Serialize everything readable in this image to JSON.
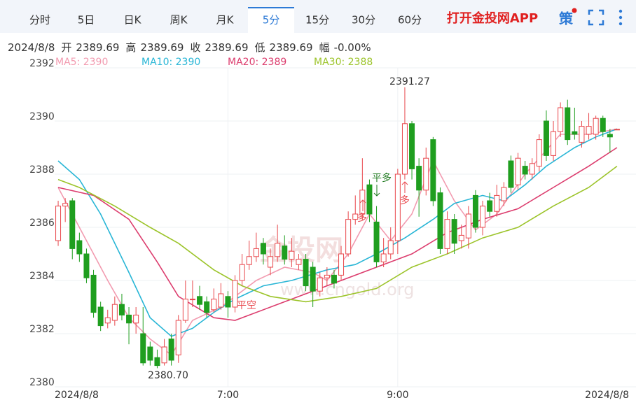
{
  "header": {
    "tabs": [
      "分时",
      "5日",
      "日K",
      "周K",
      "月K",
      "5分",
      "15分",
      "30分",
      "60分"
    ],
    "active_tab": "5分",
    "app_link": "打开金投网APP",
    "strategy_icon": "策",
    "info": {
      "date": "2024/8/8",
      "items": [
        {
          "label": "开",
          "value": "2389.69"
        },
        {
          "label": "高",
          "value": "2389.69"
        },
        {
          "label": "收",
          "value": "2389.69"
        },
        {
          "label": "低",
          "value": "2389.69"
        },
        {
          "label": "幅",
          "value": "-0.00%"
        }
      ]
    }
  },
  "chart_data": {
    "type": "candlestick",
    "categories": [
      "2024/8/8",
      null,
      null,
      null,
      null,
      null,
      null,
      null,
      null,
      null,
      null,
      null,
      null,
      null,
      null,
      null,
      null,
      null,
      null,
      null,
      null,
      null,
      null,
      null,
      "7:00",
      null,
      null,
      null,
      null,
      null,
      null,
      null,
      null,
      null,
      null,
      null,
      null,
      null,
      null,
      null,
      null,
      null,
      null,
      null,
      null,
      null,
      null,
      null,
      "9:00",
      null,
      null,
      null,
      null,
      null,
      null,
      null,
      null,
      null,
      null,
      null,
      null,
      null,
      null,
      null,
      null,
      null,
      null,
      null,
      null,
      null,
      null,
      null,
      null,
      null,
      null,
      null,
      null,
      null,
      null,
      "2024/8/8"
    ],
    "open": [
      2385.5,
      2386.8,
      2387.0,
      2385.5,
      2385.0,
      2384.2,
      2383.0,
      2382.4,
      2382.5,
      2383.1,
      2382.7,
      2382.4,
      2382.0,
      2381.5,
      2381.1,
      2380.9,
      2381.8,
      2381.2,
      2382.5,
      2383.3,
      2383.4,
      2383.2,
      2382.9,
      2383.0,
      2383.4,
      2383.0,
      2384.0,
      2384.6,
      2384.9,
      2385.4,
      2384.5,
      2384.9,
      2385.3,
      2384.8,
      2384.6,
      2384.8,
      2384.5,
      2383.6,
      2384.1,
      2384.2,
      2384.2,
      2385.0,
      2386.3,
      2386.5,
      2387.6,
      2386.2,
      2384.7,
      2385.0,
      2385.5,
      2388.0,
      2389.9,
      2388.3,
      2387.4,
      2389.3,
      2387.3,
      2385.2,
      2386.3,
      2385.5,
      2385.6,
      2387.2,
      2386.0,
      2387.0,
      2386.6,
      2387.0,
      2388.5,
      2387.6,
      2388.3,
      2388.0,
      2388.3,
      2390.0,
      2388.7,
      2389.6,
      2390.5,
      2389.6,
      2389.2,
      2389.5,
      2389.5,
      2390.1,
      2389.5,
      2389.69
    ],
    "high": [
      2387.0,
      2387.1,
      2387.1,
      2385.8,
      2385.2,
      2384.4,
      2383.2,
      2382.9,
      2383.4,
      2383.5,
      2383.0,
      2383.0,
      2383.0,
      2381.7,
      2381.4,
      2381.8,
      2382.0,
      2382.7,
      2384.0,
      2384.0,
      2383.8,
      2383.4,
      2383.7,
      2383.9,
      2383.6,
      2384.2,
      2385.0,
      2385.5,
      2385.8,
      2385.6,
      2385.2,
      2386.1,
      2385.7,
      2385.6,
      2385.0,
      2385.0,
      2384.7,
      2384.3,
      2384.5,
      2384.4,
      2385.3,
      2386.6,
      2387.2,
      2388.6,
      2387.8,
      2386.8,
      2385.6,
      2386.0,
      2388.2,
      2391.27,
      2390.0,
      2388.6,
      2389.0,
      2389.4,
      2387.5,
      2386.6,
      2386.5,
      2386.1,
      2386.8,
      2387.4,
      2387.0,
      2387.3,
      2387.6,
      2387.7,
      2388.7,
      2388.8,
      2388.5,
      2388.6,
      2389.5,
      2390.4,
      2390.0,
      2390.7,
      2390.8,
      2390.5,
      2390.0,
      2390.3,
      2390.2,
      2390.2,
      2389.7,
      2389.69
    ],
    "low": [
      2385.3,
      2386.2,
      2384.8,
      2384.7,
      2383.9,
      2382.6,
      2382.1,
      2382.2,
      2382.3,
      2382.5,
      2381.6,
      2382.0,
      2380.8,
      2380.8,
      2380.7,
      2380.8,
      2380.8,
      2380.9,
      2382.4,
      2383.0,
      2382.9,
      2382.6,
      2382.8,
      2382.9,
      2382.6,
      2382.8,
      2383.8,
      2384.4,
      2384.7,
      2384.6,
      2384.2,
      2384.7,
      2384.6,
      2384.5,
      2384.4,
      2383.6,
      2383.0,
      2383.4,
      2383.8,
      2383.7,
      2384.0,
      2384.9,
      2386.1,
      2386.3,
      2386.2,
      2384.5,
      2384.5,
      2384.8,
      2385.0,
      2387.8,
      2387.8,
      2386.4,
      2387.2,
      2386.8,
      2385.0,
      2385.0,
      2385.0,
      2385.2,
      2385.2,
      2385.8,
      2385.7,
      2386.4,
      2386.4,
      2386.8,
      2387.3,
      2387.4,
      2387.8,
      2387.8,
      2388.1,
      2388.5,
      2388.5,
      2389.4,
      2389.1,
      2389.3,
      2389.0,
      2389.3,
      2389.3,
      2389.4,
      2388.8,
      2389.69
    ],
    "close": [
      2386.8,
      2386.9,
      2385.2,
      2385.0,
      2384.1,
      2382.8,
      2382.3,
      2382.6,
      2383.1,
      2382.7,
      2382.4,
      2382.7,
      2380.9,
      2381.0,
      2380.8,
      2381.5,
      2381.0,
      2382.5,
      2383.3,
      2383.3,
      2383.1,
      2382.8,
      2383.3,
      2383.5,
      2383.0,
      2384.0,
      2384.6,
      2384.9,
      2385.2,
      2385.0,
      2384.9,
      2385.4,
      2384.8,
      2385.1,
      2384.8,
      2383.8,
      2383.6,
      2384.1,
      2384.2,
      2383.9,
      2385.0,
      2386.3,
      2386.5,
      2387.4,
      2386.5,
      2384.7,
      2385.0,
      2385.5,
      2388.0,
      2389.9,
      2388.2,
      2387.4,
      2388.6,
      2387.0,
      2385.2,
      2386.3,
      2385.4,
      2385.7,
      2386.5,
      2386.0,
      2386.8,
      2386.6,
      2387.2,
      2387.5,
      2387.5,
      2388.6,
      2388.0,
      2388.4,
      2389.3,
      2388.7,
      2389.6,
      2390.5,
      2389.3,
      2389.5,
      2389.8,
      2389.8,
      2390.1,
      2389.6,
      2389.4,
      2389.69
    ],
    "up_color": "#e8474c",
    "down_color": "#1f9e1f",
    "series": [
      {
        "name": "MA5: 2390",
        "color": "#f29bb0",
        "x": [
          0,
          3,
          7,
          10,
          13,
          16,
          19,
          23,
          28,
          32,
          36,
          38,
          41,
          44,
          47,
          50,
          53,
          56,
          59,
          62,
          66,
          71,
          75,
          79
        ],
        "values": [
          2387.5,
          2386,
          2384,
          2382.6,
          2381.8,
          2381.2,
          2382.5,
          2383,
          2384,
          2384.5,
          2384.3,
          2384,
          2385,
          2386.5,
          2385.5,
          2386.5,
          2388.5,
          2387,
          2385.9,
          2386.5,
          2388,
          2389.5,
          2389.5,
          2389.7
        ]
      },
      {
        "name": "MA10: 2390",
        "color": "#29b6d6",
        "x": [
          0,
          3,
          6,
          10,
          13,
          16,
          19,
          22,
          25,
          29,
          33,
          38,
          42,
          45,
          49,
          53,
          56,
          60,
          63,
          66,
          69,
          73,
          76,
          79
        ],
        "values": [
          2388.5,
          2387.8,
          2386.5,
          2384.3,
          2382.6,
          2381.9,
          2382.2,
          2382.8,
          2383.3,
          2383.8,
          2384,
          2384.4,
          2384.6,
          2385,
          2385.6,
          2386.3,
          2386.9,
          2387.2,
          2387,
          2387.6,
          2388.3,
          2389,
          2389.4,
          2389.7
        ]
      },
      {
        "name": "MA20: 2389",
        "color": "#dc3d6e",
        "x": [
          0,
          5,
          10,
          14,
          17,
          22,
          25,
          30,
          35,
          40,
          45,
          50,
          55,
          60,
          65,
          70,
          75,
          79
        ],
        "values": [
          2387.5,
          2387.2,
          2386.3,
          2384.7,
          2383.4,
          2382.6,
          2382.5,
          2383,
          2383.5,
          2384,
          2384.5,
          2385,
          2385.8,
          2386.3,
          2386.7,
          2387.5,
          2388.3,
          2389
        ]
      },
      {
        "name": "MA30: 2388",
        "color": "#9cc42a",
        "x": [
          0,
          3,
          8,
          13,
          17,
          22,
          26,
          30,
          35,
          40,
          45,
          50,
          55,
          60,
          65,
          70,
          75,
          79
        ],
        "values": [
          2387.8,
          2387.5,
          2386.8,
          2386,
          2385.4,
          2384.4,
          2383.8,
          2383.4,
          2383.2,
          2383.4,
          2383.7,
          2384.5,
          2385,
          2385.6,
          2386,
          2386.8,
          2387.5,
          2388.3
        ]
      }
    ],
    "ylim": [
      2380,
      2392
    ],
    "yticks": [
      2380,
      2382,
      2384,
      2386,
      2388,
      2390,
      2392
    ],
    "grid": true,
    "high_label": 2391.27,
    "low_label": {
      "value": 2380.7,
      "label": "2380.70"
    },
    "signals": [
      "平多",
      "多",
      "多",
      "平空"
    ],
    "watermark": "金投网",
    "watermark_url": "www.cngold.org"
  }
}
